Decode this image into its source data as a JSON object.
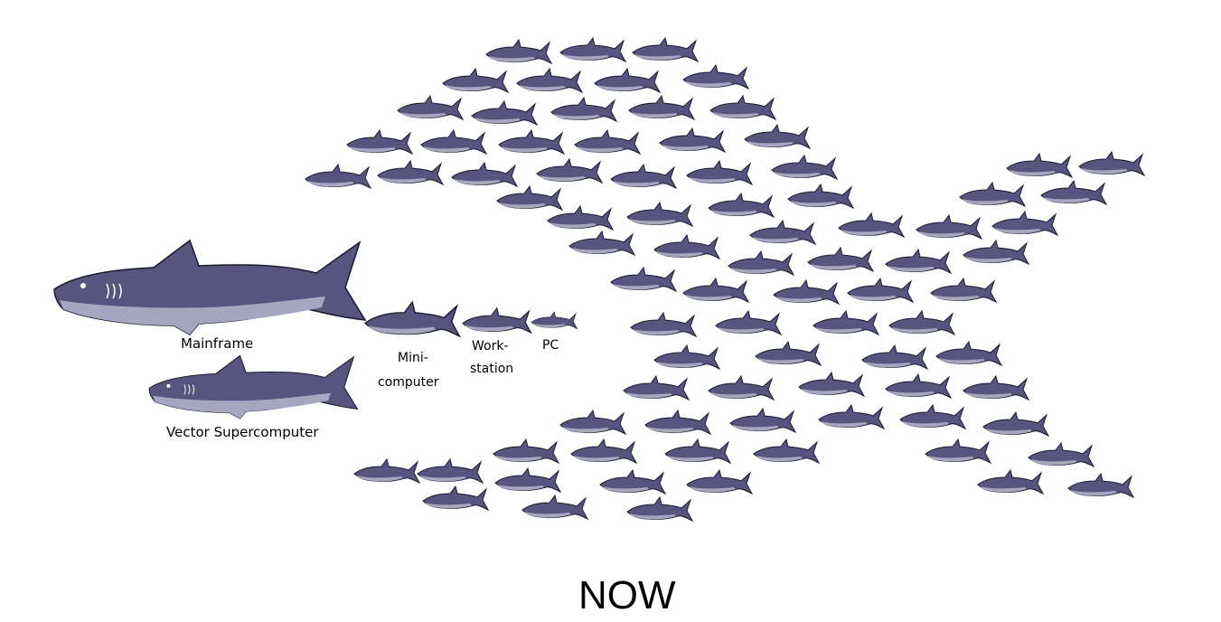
{
  "labels": {
    "mainframe": "Mainframe",
    "vector_supercomputer": "Vector Supercomputer",
    "mini_line1": "Mini-",
    "mini_line2": "computer",
    "work_line1": "Work-",
    "work_line2": "station",
    "pc": "PC"
  },
  "caption": "NOW",
  "colors": {
    "shark_top": "#57557f",
    "shark_belly": "#a7a6c0",
    "outline": "#1b1a2e"
  }
}
